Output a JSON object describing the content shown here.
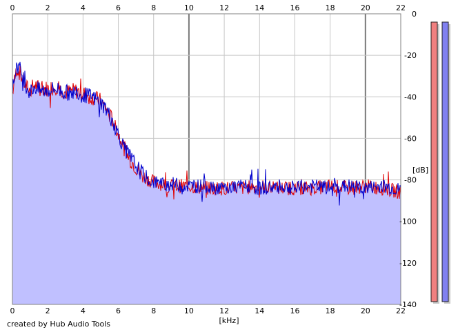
{
  "credit": "created by Hub Audio Tools",
  "chart_data": {
    "type": "area",
    "x_unit": "[kHz]",
    "y_unit": "[dB]",
    "xlim": [
      0,
      22
    ],
    "ylim": [
      -140,
      0
    ],
    "x_ticks": [
      0,
      2,
      4,
      6,
      8,
      10,
      12,
      14,
      16,
      18,
      20,
      22
    ],
    "x_tick_labels": [
      "0",
      "2",
      "4",
      "6",
      "8",
      "10",
      "12",
      "14",
      "16",
      "18",
      "20",
      "22"
    ],
    "y_ticks": [
      0,
      -20,
      -40,
      -60,
      -80,
      -100,
      -120,
      -140
    ],
    "y_tick_labels": [
      "0",
      "-20",
      "-40",
      "-60",
      "-80",
      "-100",
      "-120",
      "-140"
    ],
    "x_ticks_top": true,
    "x_ticks_bottom": true,
    "y_ticks_right": true,
    "grid": true,
    "fill_color": "#c0c0ff",
    "series": [
      {
        "color": "#e00000",
        "x": [
          0,
          0.25,
          0.5,
          0.75,
          1,
          1.25,
          1.5,
          2,
          2.5,
          3,
          3.5,
          4,
          4.5,
          5,
          5.25,
          5.5,
          5.75,
          6,
          6.25,
          6.5,
          6.75,
          7,
          7.25,
          7.5,
          7.75,
          8,
          8.5,
          9,
          10,
          11,
          12,
          13,
          14,
          15,
          16,
          17,
          18,
          19,
          20,
          21,
          22
        ],
        "y": [
          -38,
          -26,
          -30,
          -35,
          -37,
          -34,
          -36,
          -36,
          -35,
          -38,
          -37,
          -38,
          -40,
          -42,
          -45,
          -49,
          -52,
          -58,
          -63,
          -68,
          -71,
          -74,
          -77,
          -79,
          -80,
          -81,
          -82,
          -83,
          -83,
          -84,
          -84,
          -84,
          -83,
          -84,
          -84,
          -84,
          -83,
          -84,
          -83,
          -84,
          -86
        ]
      },
      {
        "color": "#0000cc",
        "x": [
          0,
          0.25,
          0.5,
          0.75,
          1,
          1.25,
          1.5,
          2,
          2.5,
          3,
          3.5,
          4,
          4.5,
          5,
          5.25,
          5.5,
          5.75,
          6,
          6.25,
          6.5,
          6.75,
          7,
          7.25,
          7.5,
          7.75,
          8,
          8.5,
          9,
          10,
          11,
          12,
          13,
          14,
          15,
          16,
          17,
          18,
          19,
          20,
          21,
          22
        ],
        "y": [
          -37,
          -24,
          -28,
          -34,
          -38,
          -35,
          -37,
          -37,
          -36,
          -38,
          -38,
          -39,
          -40,
          -43,
          -45,
          -49,
          -53,
          -58,
          -63,
          -67,
          -70,
          -73,
          -76,
          -78,
          -80,
          -81,
          -82,
          -82,
          -83,
          -83,
          -84,
          -83,
          -84,
          -83,
          -84,
          -83,
          -84,
          -83,
          -84,
          -83,
          -85
        ]
      }
    ],
    "level_meters": [
      {
        "color": "#f08080",
        "level_db": 0
      },
      {
        "color": "#8080f0",
        "level_db": 0
      }
    ]
  }
}
